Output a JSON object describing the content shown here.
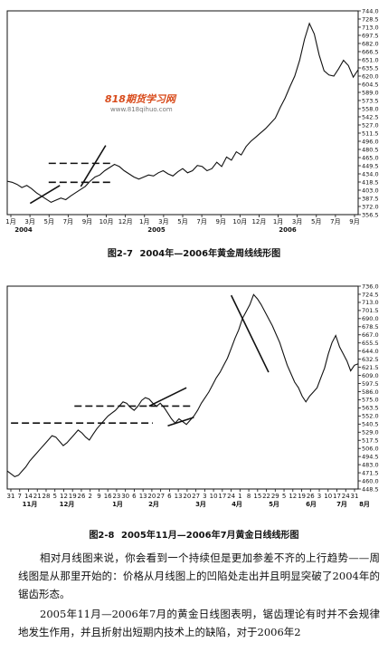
{
  "chart_data": [
    {
      "type": "line",
      "title": "",
      "y_ticks": [
        "744.0",
        "728.5",
        "713.0",
        "697.5",
        "682.0",
        "666.5",
        "651.0",
        "635.5",
        "620.0",
        "604.5",
        "589.0",
        "573.5",
        "558.0",
        "542.5",
        "527.0",
        "511.5",
        "496.0",
        "480.5",
        "465.0",
        "449.5",
        "434.0",
        "418.5",
        "403.0",
        "387.5",
        "372.0",
        "356.5"
      ],
      "ylim": [
        356.5,
        744.0
      ],
      "x_ticks": [
        "1月",
        "3月",
        "5月",
        "7月",
        "9月",
        "10月",
        "12月",
        "1月",
        "3月",
        "5月",
        "7月",
        "9月",
        "10月",
        "12月",
        "1月",
        "3月",
        "5月",
        "7月",
        "9月"
      ],
      "x_year_labels": [
        "2004",
        "2005",
        "2006"
      ],
      "series": [
        {
          "values": [
            420,
            418,
            414,
            408,
            412,
            406,
            398,
            392,
            386,
            380,
            384,
            388,
            385,
            392,
            398,
            404,
            410,
            420,
            428,
            432,
            440,
            446,
            452,
            448,
            440,
            434,
            428,
            424,
            428,
            432,
            430,
            436,
            440,
            434,
            430,
            438,
            444,
            436,
            440,
            450,
            448,
            440,
            444,
            456,
            448,
            466,
            460,
            476,
            470,
            486,
            496,
            504,
            512,
            520,
            530,
            540,
            560,
            578,
            600,
            620,
            650,
            690,
            720,
            700,
            660,
            630,
            622,
            620,
            634,
            650,
            640,
            618,
            632
          ]
        }
      ],
      "annotations": {
        "trendlines": [
          {
            "from": [
              4.7,
              378
            ],
            "to": [
              10.8,
              412
            ]
          },
          {
            "from": [
              15.1,
              410
            ],
            "to": [
              20.2,
              488
            ]
          }
        ],
        "horizontal_levels": [
          {
            "y": 454,
            "x_from": 8.5,
            "x_to": 21.2
          },
          {
            "y": 418,
            "x_from": 8.5,
            "x_to": 21.2
          }
        ]
      }
    },
    {
      "type": "line",
      "title": "",
      "y_ticks": [
        "736.0",
        "724.5",
        "713.0",
        "701.5",
        "690.0",
        "678.5",
        "667.0",
        "655.5",
        "644.0",
        "632.5",
        "621.5",
        "609.0",
        "597.5",
        "586.0",
        "575.0",
        "563.5",
        "552.0",
        "540.5",
        "529.0",
        "517.5",
        "506.0",
        "494.5",
        "483.0",
        "471.5",
        "460.0",
        "448.5"
      ],
      "ylim": [
        448.5,
        736.0
      ],
      "x_ticks": [
        "31",
        "7",
        "14",
        "21",
        "28",
        "5",
        "12",
        "19",
        "26",
        "2",
        "9",
        "16",
        "23",
        "30",
        "6",
        "13",
        "20",
        "27",
        "6",
        "13",
        "20",
        "27",
        "3",
        "10",
        "17",
        "24",
        "1",
        "8",
        "15",
        "22",
        "29",
        "5",
        "12",
        "19",
        "26",
        "3",
        "10",
        "17",
        "24",
        "31"
      ],
      "x_month_labels": [
        "11月",
        "12月",
        "1月",
        "2月",
        "3月",
        "4月",
        "5月",
        "6月",
        "7月",
        "8月"
      ],
      "series": [
        {
          "values": [
            474,
            470,
            466,
            468,
            474,
            480,
            488,
            494,
            500,
            506,
            512,
            518,
            524,
            522,
            516,
            510,
            514,
            520,
            526,
            532,
            528,
            522,
            518,
            526,
            534,
            540,
            546,
            552,
            556,
            560,
            566,
            572,
            570,
            564,
            560,
            566,
            574,
            578,
            576,
            570,
            566,
            570,
            564,
            556,
            548,
            542,
            548,
            544,
            540,
            546,
            552,
            560,
            570,
            578,
            586,
            596,
            606,
            614,
            624,
            634,
            648,
            662,
            674,
            690,
            700,
            710,
            724,
            718,
            710,
            700,
            690,
            680,
            668,
            656,
            640,
            624,
            612,
            600,
            592,
            580,
            572,
            580,
            586,
            592,
            606,
            620,
            640,
            656,
            666,
            650,
            640,
            630,
            616,
            624,
            626
          ]
        }
      ],
      "annotations": {
        "trendlines": [
          {
            "from": [
              38,
              566
            ],
            "to": [
              48,
              592
            ]
          },
          {
            "from": [
              43,
              538
            ],
            "to": [
              50,
              550
            ]
          },
          {
            "from": [
              60,
              723
            ],
            "to": [
              70,
              614
            ]
          }
        ],
        "horizontal_levels": [
          {
            "y": 566,
            "x_from": 18,
            "x_to": 49
          },
          {
            "y": 542,
            "x_from": 1,
            "x_to": 39
          }
        ]
      }
    }
  ],
  "figure1": {
    "caption_no": "图2-7",
    "caption_text": "2004年—2006年黄金周线线形图",
    "logo_brand": "818期货学习网",
    "logo_url": "www.818qihuo.com"
  },
  "figure2": {
    "caption_no": "图2-8",
    "caption_text": "2005年11月—2006年7月黄金日线线形图"
  },
  "text": {
    "para1": "相对月线图来说，你会看到一个持续但是更加参差不齐的上行趋势——周线图是从那里开始的：价格从月线图上的凹陷处走出并且明显突破了2004年的锯齿形态。",
    "para2": "2005年11月—2006年7月的黄金日线图表明，锯齿理论有时并不会规律地发生作用，并且折射出短期内技术上的缺陷，对于2006年2"
  }
}
